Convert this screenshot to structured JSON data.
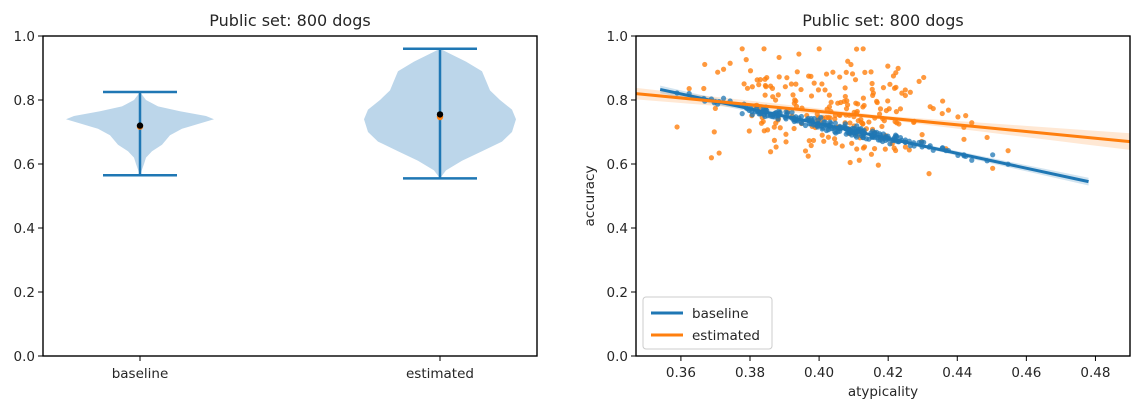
{
  "colors": {
    "baseline": "#1f77b4",
    "estimated": "#ff7f0e",
    "violin_fill": "#bcd6ea",
    "axis": "#000000"
  },
  "chart_data": [
    {
      "type": "violin",
      "title": "Public set: 800 dogs",
      "xlabel": "",
      "ylabel": "",
      "categories": [
        "baseline",
        "estimated"
      ],
      "ylim": [
        0.0,
        1.0
      ],
      "yticks": [
        "0.0",
        "0.2",
        "0.4",
        "0.6",
        "0.8",
        "1.0"
      ],
      "series": [
        {
          "category": "baseline",
          "min": 0.565,
          "max": 0.825,
          "median": 0.72,
          "mean": 0.72
        },
        {
          "category": "estimated",
          "min": 0.555,
          "max": 0.96,
          "median": 0.75,
          "mean": 0.755
        }
      ],
      "grid": false
    },
    {
      "type": "scatter",
      "title": "Public set: 800 dogs",
      "xlabel": "atypicality",
      "ylabel": "accuracy",
      "xlim": [
        0.347,
        0.49
      ],
      "ylim": [
        0.0,
        1.0
      ],
      "xticks": [
        "0.36",
        "0.38",
        "0.40",
        "0.42",
        "0.44",
        "0.46",
        "0.48"
      ],
      "yticks": [
        "0.0",
        "0.2",
        "0.4",
        "0.6",
        "0.8",
        "1.0"
      ],
      "legend": {
        "placement": "lower-left",
        "entries": [
          "baseline",
          "estimated"
        ]
      },
      "series": [
        {
          "name": "baseline",
          "fit_line": {
            "x": [
              0.354,
              0.478
            ],
            "y": [
              0.833,
              0.545
            ]
          }
        },
        {
          "name": "estimated",
          "fit_line": {
            "x": [
              0.347,
              0.49
            ],
            "y": [
              0.82,
              0.67
            ]
          }
        }
      ],
      "grid": false
    }
  ]
}
